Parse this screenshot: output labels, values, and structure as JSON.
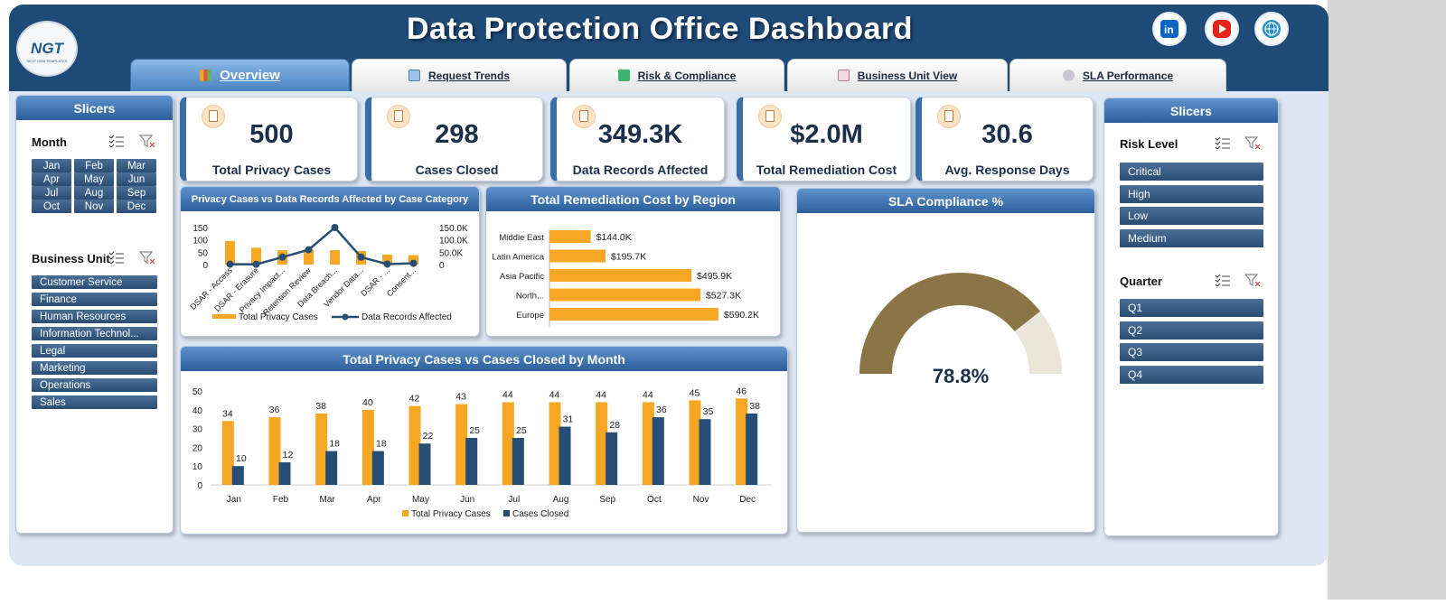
{
  "header": {
    "title": "Data Protection Office Dashboard",
    "logo_text": "NGT",
    "logo_sub": "NEXT GEN TEMPLATES",
    "social": [
      {
        "name": "linkedin-icon",
        "color": "#0a66c2"
      },
      {
        "name": "youtube-icon",
        "color": "#e62117"
      },
      {
        "name": "website-globe-icon",
        "color": "#1a8fd1"
      }
    ]
  },
  "tabs": [
    {
      "label": "Overview",
      "icon": "bar-chart-icon",
      "active": true
    },
    {
      "label": "Request Trends",
      "icon": "trend-chart-icon",
      "active": false
    },
    {
      "label": "Risk & Compliance",
      "icon": "checkmark-icon",
      "active": false
    },
    {
      "label": "Business Unit View",
      "icon": "clipboard-icon",
      "active": false
    },
    {
      "label": "SLA Performance",
      "icon": "gear-icon",
      "active": false
    }
  ],
  "left_slicers": {
    "title": "Slicers",
    "month_label": "Month",
    "months": [
      "Jan",
      "Feb",
      "Mar",
      "Apr",
      "May",
      "Jun",
      "Jul",
      "Aug",
      "Sep",
      "Oct",
      "Nov",
      "Dec"
    ],
    "bu_label": "Business Unit",
    "business_units": [
      "Customer Service",
      "Finance",
      "Human Resources",
      "Information Technol...",
      "Legal",
      "Marketing",
      "Operations",
      "Sales"
    ]
  },
  "right_slicers": {
    "title": "Slicers",
    "risk_label": "Risk Level",
    "risk_levels": [
      "Critical",
      "High",
      "Low",
      "Medium"
    ],
    "quarter_label": "Quarter",
    "quarters": [
      "Q1",
      "Q2",
      "Q3",
      "Q4"
    ]
  },
  "kpis": [
    {
      "value": "500",
      "label": "Total Privacy Cases",
      "icon": "clipboard-icon"
    },
    {
      "value": "298",
      "label": "Cases Closed",
      "icon": "clipboard-icon"
    },
    {
      "value": "349.3K",
      "label": "Data Records Affected",
      "icon": "clipboard-icon"
    },
    {
      "value": "$2.0M",
      "label": "Total Remediation Cost",
      "icon": "money-icon"
    },
    {
      "value": "30.6",
      "label": "Avg. Response Days",
      "icon": "stopwatch-icon"
    }
  ],
  "chart_data": [
    {
      "type": "bar",
      "title": "Privacy Cases vs Data Records Affected by Case Category",
      "categories": [
        "DSAR - Access",
        "DSAR - Erasure",
        "Privacy Impact...",
        "Retention Review",
        "Data Breach...",
        "Vendor Data...",
        "DSAR - ...",
        "Consent..."
      ],
      "series": [
        {
          "name": "Total Privacy Cases",
          "type": "bar",
          "axis": "left",
          "color": "#f5a623",
          "values": [
            95,
            68,
            58,
            60,
            58,
            55,
            40,
            38
          ]
        },
        {
          "name": "Data Records Affected",
          "type": "line",
          "axis": "right",
          "color": "#264d73",
          "values": [
            1500,
            1000,
            30000,
            60000,
            150000,
            30000,
            2000,
            5000
          ]
        }
      ],
      "y_ticks": [
        "150",
        "100",
        "50",
        "0"
      ],
      "y2_ticks": [
        "150.0K",
        "100.0K",
        "50.0K",
        "0"
      ],
      "ylim": [
        0,
        150
      ],
      "y2lim": [
        0,
        150000
      ],
      "legend_position": "bottom"
    },
    {
      "type": "bar",
      "orientation": "horizontal",
      "title": "Total Remediation Cost by Region",
      "categories": [
        "Middle East",
        "Latin America",
        "Asia Pacific",
        "North...",
        "Europe"
      ],
      "values": [
        144000,
        195700,
        495900,
        527300,
        590200
      ],
      "value_labels": [
        "$144.0K",
        "$195.7K",
        "$495.9K",
        "$527.3K",
        "$590.2K"
      ],
      "color": "#f5a623"
    },
    {
      "type": "pie",
      "title": "SLA Compliance %",
      "subtype": "gauge",
      "value": 78.8,
      "value_label": "78.8%",
      "colors": [
        "#8b7546",
        "#ebe6da"
      ]
    },
    {
      "type": "bar",
      "title": "Total Privacy Cases vs Cases Closed by Month",
      "categories": [
        "Jan",
        "Feb",
        "Mar",
        "Apr",
        "May",
        "Jun",
        "Jul",
        "Aug",
        "Sep",
        "Oct",
        "Nov",
        "Dec"
      ],
      "series": [
        {
          "name": "Total Privacy Cases",
          "color": "#f5a623",
          "values": [
            34,
            36,
            38,
            40,
            42,
            43,
            44,
            44,
            44,
            44,
            45,
            46
          ]
        },
        {
          "name": "Cases Closed",
          "color": "#264d73",
          "values": [
            10,
            12,
            18,
            18,
            22,
            25,
            25,
            31,
            28,
            36,
            35,
            38
          ]
        }
      ],
      "y_ticks": [
        "50",
        "40",
        "30",
        "20",
        "10",
        "0"
      ],
      "ylim": [
        0,
        50
      ],
      "legend_position": "bottom"
    }
  ]
}
